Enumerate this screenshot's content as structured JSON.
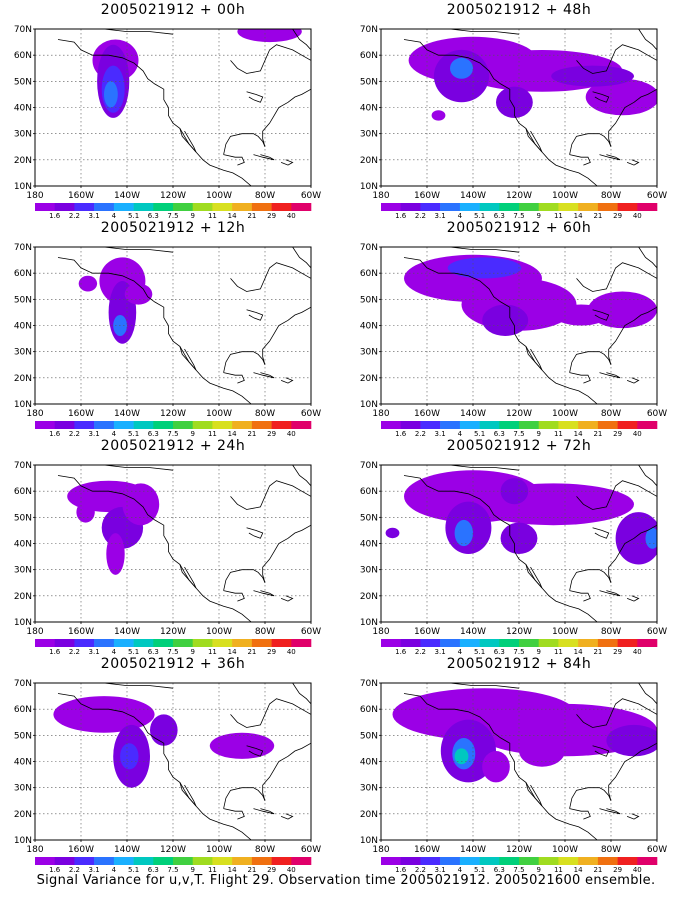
{
  "caption": "Signal Variance for u,v,T. Flight 29. Observation time 2005021912. 2005021600 ensemble.",
  "y_ticks": [
    "70N",
    "60N",
    "50N",
    "40N",
    "30N",
    "20N",
    "10N"
  ],
  "x_ticks": [
    "180",
    "160W",
    "140W",
    "120W",
    "100W",
    "80W",
    "60W"
  ],
  "colorbar": {
    "labels": [
      "1.6",
      "2.2",
      "3.1",
      "4",
      "5.1",
      "6.3",
      "7.5",
      "9",
      "11",
      "14",
      "21",
      "29",
      "40"
    ],
    "colors": [
      "#9b00e6",
      "#7a00e0",
      "#4a2bff",
      "#2a73ff",
      "#1ab0ff",
      "#00c8c0",
      "#00d07a",
      "#40d040",
      "#a0dc20",
      "#d8e020",
      "#f0b020",
      "#f07010",
      "#f02020",
      "#e0006a"
    ]
  },
  "panels": [
    {
      "title": "2005021912 + 00h",
      "lead": "00h"
    },
    {
      "title": "2005021912 + 48h",
      "lead": "48h"
    },
    {
      "title": "2005021912 + 12h",
      "lead": "12h"
    },
    {
      "title": "2005021912 + 60h",
      "lead": "60h"
    },
    {
      "title": "2005021912 + 24h",
      "lead": "24h"
    },
    {
      "title": "2005021912 + 72h",
      "lead": "72h"
    },
    {
      "title": "2005021912 + 36h",
      "lead": "36h"
    },
    {
      "title": "2005021912 + 84h",
      "lead": "84h"
    }
  ]
}
